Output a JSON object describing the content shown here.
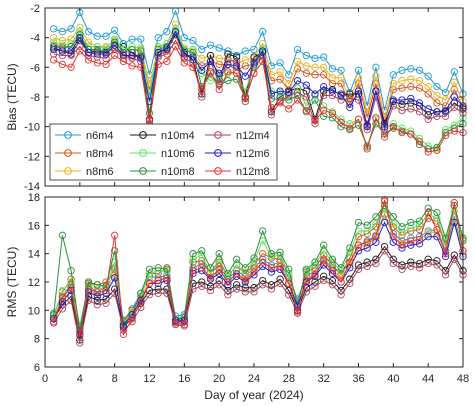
{
  "chart_data": [
    {
      "type": "line",
      "ylabel": "Bias (TECU)",
      "xlabel": "",
      "xlim": [
        0,
        48
      ],
      "ylim": [
        -14,
        -2
      ],
      "xticks": [
        0,
        4,
        8,
        12,
        16,
        20,
        24,
        28,
        32,
        36,
        40,
        44,
        48
      ],
      "yticks": [
        -14,
        -12,
        -10,
        -8,
        -6,
        -4,
        -2
      ],
      "grid": false,
      "legend": {
        "position": "bottom-left",
        "columns": 3
      },
      "x": [
        1,
        2,
        3,
        4,
        5,
        6,
        7,
        8,
        9,
        10,
        11,
        12,
        13,
        14,
        15,
        16,
        17,
        18,
        19,
        20,
        21,
        22,
        23,
        24,
        25,
        26,
        27,
        28,
        29,
        30,
        31,
        32,
        33,
        34,
        35,
        36,
        37,
        38,
        39,
        40,
        41,
        42,
        43,
        44,
        45,
        46,
        47,
        48
      ],
      "series": [
        {
          "name": "n6m4",
          "color": "#1f9bd6",
          "values": [
            -3.4,
            -3.6,
            -3.4,
            -2.3,
            -3.6,
            -3.9,
            -3.9,
            -3.5,
            -4.4,
            -4.1,
            -4.1,
            -6.5,
            -4.0,
            -3.6,
            -2.2,
            -4.0,
            -4.2,
            -4.8,
            -4.5,
            -4.7,
            -4.9,
            -5.2,
            -4.9,
            -4.8,
            -3.6,
            -5.9,
            -5.7,
            -6.5,
            -4.8,
            -5.2,
            -5.4,
            -5.3,
            -6.1,
            -6.2,
            -7.7,
            -6.2,
            -8.6,
            -6.0,
            -8.9,
            -6.5,
            -6.2,
            -6.1,
            -6.2,
            -6.6,
            -7.3,
            -7.7,
            -6.3,
            -7.8
          ]
        },
        {
          "name": "n8m4",
          "color": "#d9531a",
          "values": [
            -4.5,
            -4.6,
            -4.6,
            -4.0,
            -4.8,
            -5.0,
            -5.0,
            -4.7,
            -5.4,
            -5.3,
            -5.2,
            -7.5,
            -5.2,
            -4.9,
            -3.8,
            -5.3,
            -5.3,
            -5.9,
            -5.6,
            -5.8,
            -5.8,
            -6.2,
            -5.9,
            -5.8,
            -4.9,
            -6.9,
            -6.8,
            -7.5,
            -6.1,
            -6.4,
            -6.5,
            -6.5,
            -7.1,
            -7.1,
            -8.5,
            -7.1,
            -9.4,
            -7.1,
            -9.7,
            -7.5,
            -7.4,
            -7.3,
            -7.4,
            -7.8,
            -8.4,
            -8.6,
            -7.5,
            -8.7
          ]
        },
        {
          "name": "n8m6",
          "color": "#edb120",
          "values": [
            -4.0,
            -4.2,
            -4.1,
            -3.3,
            -4.3,
            -4.6,
            -4.6,
            -4.2,
            -5.0,
            -4.8,
            -4.8,
            -7.1,
            -4.7,
            -4.4,
            -3.1,
            -4.8,
            -4.9,
            -5.4,
            -5.2,
            -5.4,
            -5.4,
            -5.8,
            -5.5,
            -5.4,
            -4.4,
            -6.5,
            -6.3,
            -7.1,
            -5.6,
            -5.9,
            -6.0,
            -6.0,
            -6.7,
            -6.7,
            -8.2,
            -6.7,
            -9.1,
            -6.6,
            -9.4,
            -7.1,
            -6.9,
            -6.8,
            -6.9,
            -7.3,
            -7.9,
            -8.2,
            -7.0,
            -8.3
          ]
        },
        {
          "name": "n10m4",
          "color": "#1a1a1a",
          "values": [
            -4.7,
            -4.9,
            -5.1,
            -4.2,
            -5.0,
            -4.9,
            -5.0,
            -4.3,
            -4.6,
            -5.0,
            -5.4,
            -9.5,
            -5.0,
            -4.8,
            -3.8,
            -5.0,
            -5.5,
            -7.8,
            -5.2,
            -6.8,
            -5.1,
            -5.3,
            -8.0,
            -5.3,
            -5.0,
            -9.0,
            -8.0,
            -7.6,
            -7.4,
            -7.6,
            -9.5,
            -7.6,
            -7.5,
            -7.9,
            -7.8,
            -7.8,
            -9.9,
            -7.6,
            -9.8,
            -8.3,
            -8.5,
            -8.4,
            -8.6,
            -9.2,
            -9.0,
            -9.0,
            -8.4,
            -8.8
          ]
        },
        {
          "name": "n10m6",
          "color": "#5fe35f",
          "values": [
            -4.3,
            -4.5,
            -4.4,
            -3.6,
            -4.6,
            -4.6,
            -4.7,
            -4.1,
            -4.8,
            -4.6,
            -4.7,
            -7.9,
            -4.6,
            -4.4,
            -3.4,
            -4.7,
            -4.8,
            -6.4,
            -6.9,
            -6.7,
            -6.4,
            -6.4,
            -7.6,
            -5.9,
            -4.7,
            -7.6,
            -7.7,
            -8.0,
            -7.4,
            -8.6,
            -7.9,
            -8.6,
            -9.0,
            -9.5,
            -9.8,
            -9.5,
            -11.4,
            -9.5,
            -10.1,
            -9.8,
            -10.1,
            -10.3,
            -10.8,
            -11.3,
            -11.5,
            -10.2,
            -9.9,
            -9.4
          ]
        },
        {
          "name": "n10m8",
          "color": "#2a8f3b",
          "values": [
            -4.6,
            -4.7,
            -4.6,
            -3.8,
            -4.8,
            -4.8,
            -4.9,
            -4.3,
            -5.0,
            -4.8,
            -4.9,
            -9.1,
            -4.8,
            -4.6,
            -3.6,
            -4.9,
            -5.0,
            -7.3,
            -6.4,
            -7.2,
            -6.9,
            -6.8,
            -8.1,
            -6.4,
            -4.9,
            -8.1,
            -8.2,
            -8.2,
            -7.9,
            -9.0,
            -8.2,
            -9.3,
            -9.4,
            -10.0,
            -10.2,
            -9.9,
            -11.3,
            -9.8,
            -10.5,
            -10.1,
            -10.3,
            -10.5,
            -11.2,
            -11.5,
            -11.4,
            -10.4,
            -10.1,
            -9.8
          ]
        },
        {
          "name": "n12m4",
          "color": "#a8445a",
          "values": [
            -5.1,
            -5.2,
            -5.2,
            -4.6,
            -5.2,
            -5.3,
            -5.4,
            -4.8,
            -5.1,
            -5.4,
            -5.6,
            -9.8,
            -5.3,
            -5.1,
            -4.2,
            -5.4,
            -5.7,
            -8.0,
            -5.6,
            -7.1,
            -5.5,
            -5.6,
            -8.3,
            -5.6,
            -5.3,
            -9.2,
            -8.3,
            -7.9,
            -7.7,
            -8.0,
            -9.8,
            -7.9,
            -7.9,
            -8.2,
            -8.1,
            -8.2,
            -10.2,
            -8.0,
            -10.2,
            -8.6,
            -8.9,
            -8.8,
            -9.0,
            -9.5,
            -9.3,
            -9.3,
            -8.7,
            -9.1
          ]
        },
        {
          "name": "n12m6",
          "color": "#1c1cd6",
          "values": [
            -4.8,
            -4.9,
            -4.9,
            -4.0,
            -5.0,
            -5.1,
            -5.1,
            -4.5,
            -5.2,
            -5.2,
            -5.3,
            -8.3,
            -5.0,
            -4.7,
            -3.6,
            -5.1,
            -5.3,
            -6.2,
            -5.6,
            -6.4,
            -5.8,
            -5.9,
            -6.6,
            -5.7,
            -4.9,
            -7.8,
            -7.6,
            -7.7,
            -6.9,
            -7.2,
            -7.8,
            -7.3,
            -7.6,
            -7.8,
            -8.7,
            -7.6,
            -10.0,
            -7.6,
            -10.0,
            -8.2,
            -8.2,
            -8.1,
            -8.4,
            -8.8,
            -9.0,
            -8.9,
            -8.0,
            -8.6
          ]
        },
        {
          "name": "n12m8",
          "color": "#e8312f",
          "values": [
            -5.5,
            -5.8,
            -6.0,
            -4.9,
            -5.5,
            -5.7,
            -5.8,
            -5.2,
            -5.6,
            -5.9,
            -6.0,
            -9.6,
            -5.8,
            -5.6,
            -4.6,
            -5.7,
            -6.0,
            -7.5,
            -6.3,
            -7.5,
            -6.3,
            -6.4,
            -8.1,
            -6.4,
            -5.6,
            -8.7,
            -8.4,
            -8.8,
            -8.2,
            -8.9,
            -9.6,
            -8.9,
            -9.1,
            -9.7,
            -10.1,
            -9.5,
            -11.5,
            -9.4,
            -10.7,
            -10.0,
            -10.4,
            -10.5,
            -11.0,
            -11.7,
            -11.6,
            -10.6,
            -10.3,
            -10.4
          ]
        }
      ]
    },
    {
      "type": "line",
      "ylabel": "RMS (TECU)",
      "xlabel": "Day of year (2024)",
      "xlim": [
        0,
        48
      ],
      "ylim": [
        6,
        18
      ],
      "xticks": [
        0,
        4,
        8,
        12,
        16,
        20,
        24,
        28,
        32,
        36,
        40,
        44,
        48
      ],
      "yticks": [
        6,
        8,
        10,
        12,
        14,
        16,
        18
      ],
      "grid": false,
      "x": [
        1,
        2,
        3,
        4,
        5,
        6,
        7,
        8,
        9,
        10,
        11,
        12,
        13,
        14,
        15,
        16,
        17,
        18,
        19,
        20,
        21,
        22,
        23,
        24,
        25,
        26,
        27,
        28,
        29,
        30,
        31,
        32,
        33,
        34,
        35,
        36,
        37,
        38,
        39,
        40,
        41,
        42,
        43,
        44,
        45,
        46,
        47,
        48
      ],
      "series": [
        {
          "name": "n6m4",
          "color": "#1f9bd6",
          "values": [
            9.8,
            11.0,
            11.8,
            8.9,
            11.7,
            11.3,
            11.7,
            13.0,
            9.3,
            10.1,
            11.2,
            12.4,
            12.3,
            12.5,
            9.6,
            9.7,
            13.0,
            13.3,
            12.7,
            13.1,
            12.2,
            12.8,
            12.4,
            13.0,
            13.6,
            13.2,
            13.4,
            12.3,
            10.8,
            12.4,
            12.8,
            13.6,
            13.0,
            12.6,
            13.4,
            14.6,
            14.9,
            15.3,
            16.8,
            15.4,
            14.9,
            15.1,
            15.2,
            15.6,
            15.7,
            14.2,
            16.6,
            14.2
          ]
        },
        {
          "name": "n8m4",
          "color": "#d9531a",
          "values": [
            9.6,
            11.3,
            12.2,
            8.5,
            11.9,
            11.8,
            12.0,
            12.9,
            9.2,
            10.0,
            11.0,
            12.6,
            12.6,
            13.0,
            9.4,
            9.5,
            13.4,
            13.5,
            12.7,
            13.4,
            12.4,
            13.2,
            12.6,
            13.2,
            14.0,
            13.7,
            13.6,
            12.6,
            10.6,
            12.7,
            13.0,
            13.9,
            13.2,
            12.5,
            13.7,
            15.2,
            15.4,
            15.9,
            17.7,
            15.9,
            15.3,
            15.6,
            15.7,
            16.5,
            16.3,
            14.6,
            17.4,
            14.9
          ]
        },
        {
          "name": "n8m6",
          "color": "#edb120",
          "values": [
            9.5,
            10.8,
            11.7,
            8.7,
            11.5,
            11.1,
            11.4,
            12.6,
            9.1,
            9.9,
            10.9,
            12.1,
            12.1,
            12.3,
            9.4,
            9.5,
            12.8,
            13.0,
            12.4,
            12.8,
            12.0,
            12.6,
            12.2,
            12.8,
            13.4,
            13.0,
            13.2,
            12.1,
            10.6,
            12.2,
            12.6,
            13.4,
            12.8,
            12.3,
            13.2,
            14.4,
            14.7,
            15.1,
            16.7,
            15.2,
            14.7,
            14.9,
            15.0,
            15.5,
            15.5,
            14.0,
            16.4,
            14.0
          ]
        },
        {
          "name": "n10m4",
          "color": "#1a1a1a",
          "values": [
            9.4,
            10.4,
            11.0,
            7.9,
            11.0,
            10.7,
            10.8,
            11.5,
            8.8,
            9.5,
            10.5,
            11.4,
            11.5,
            11.5,
            9.2,
            9.2,
            11.9,
            12.0,
            11.7,
            12.1,
            11.4,
            11.8,
            11.6,
            11.6,
            12.1,
            11.8,
            12.2,
            11.4,
            10.0,
            11.6,
            12.0,
            12.4,
            12.1,
            11.4,
            12.2,
            13.2,
            13.4,
            13.6,
            14.5,
            13.6,
            13.2,
            13.4,
            13.3,
            13.6,
            13.5,
            12.8,
            13.9,
            12.8
          ]
        },
        {
          "name": "n10m6",
          "color": "#5fe35f",
          "values": [
            9.6,
            11.4,
            12.0,
            8.8,
            11.8,
            11.5,
            11.6,
            13.4,
            9.1,
            9.8,
            11.0,
            12.6,
            12.8,
            12.8,
            9.4,
            9.6,
            13.6,
            13.9,
            12.6,
            13.6,
            12.4,
            13.2,
            12.7,
            13.5,
            14.9,
            13.8,
            13.9,
            12.6,
            10.5,
            12.8,
            13.2,
            14.2,
            13.4,
            12.8,
            14.1,
            15.6,
            15.6,
            16.1,
            17.2,
            16.1,
            15.5,
            15.8,
            16.0,
            16.8,
            16.5,
            14.8,
            17.0,
            15.0
          ]
        },
        {
          "name": "n10m8",
          "color": "#2a8f3b",
          "values": [
            9.7,
            15.3,
            12.8,
            8.6,
            12.0,
            11.8,
            11.7,
            14.2,
            9.0,
            9.7,
            11.2,
            12.9,
            13.0,
            12.9,
            9.3,
            9.5,
            14.0,
            14.2,
            13.0,
            14.0,
            12.6,
            13.6,
            13.0,
            13.7,
            15.6,
            14.0,
            14.1,
            12.9,
            10.4,
            12.9,
            13.4,
            14.6,
            13.6,
            13.0,
            14.4,
            16.2,
            16.0,
            16.6,
            17.4,
            16.6,
            15.9,
            16.2,
            16.3,
            17.2,
            16.9,
            15.1,
            17.4,
            15.1
          ]
        },
        {
          "name": "n12m4",
          "color": "#a8445a",
          "values": [
            9.1,
            10.1,
            10.7,
            7.7,
            10.7,
            10.4,
            10.5,
            11.2,
            8.6,
            9.2,
            10.2,
            11.1,
            11.2,
            11.2,
            9.0,
            8.9,
            11.5,
            11.7,
            11.4,
            11.8,
            11.1,
            11.5,
            11.3,
            11.3,
            11.8,
            11.5,
            11.9,
            11.1,
            9.8,
            11.3,
            11.7,
            12.1,
            11.8,
            11.1,
            11.9,
            12.9,
            13.1,
            13.3,
            14.2,
            13.3,
            12.9,
            13.1,
            13.0,
            13.3,
            13.2,
            12.5,
            13.6,
            12.5
          ]
        },
        {
          "name": "n12m6",
          "color": "#1c1cd6",
          "values": [
            9.4,
            10.6,
            11.4,
            8.3,
            11.3,
            11.0,
            11.2,
            12.3,
            8.9,
            9.7,
            10.7,
            11.9,
            11.9,
            12.1,
            9.3,
            9.3,
            12.6,
            12.8,
            12.2,
            12.6,
            11.8,
            12.4,
            12.0,
            12.5,
            13.1,
            12.7,
            12.9,
            11.9,
            10.3,
            12.0,
            12.4,
            13.2,
            12.6,
            12.0,
            13.0,
            14.2,
            14.4,
            14.8,
            16.2,
            14.8,
            14.4,
            14.6,
            14.7,
            15.2,
            15.2,
            13.8,
            16.2,
            13.8
          ]
        },
        {
          "name": "n12m8",
          "color": "#e8312f",
          "values": [
            9.2,
            10.9,
            11.6,
            8.2,
            11.5,
            11.3,
            11.4,
            15.3,
            8.3,
            9.4,
            10.6,
            11.9,
            12.1,
            12.3,
            9.1,
            9.0,
            12.8,
            13.0,
            12.3,
            12.9,
            12.0,
            12.6,
            12.1,
            12.7,
            13.4,
            13.0,
            13.1,
            11.9,
            9.9,
            12.1,
            12.5,
            13.5,
            12.8,
            12.0,
            13.4,
            14.6,
            14.8,
            15.2,
            17.8,
            15.2,
            14.6,
            14.9,
            15.0,
            16.9,
            15.7,
            14.0,
            17.6,
            14.2
          ]
        }
      ]
    }
  ]
}
